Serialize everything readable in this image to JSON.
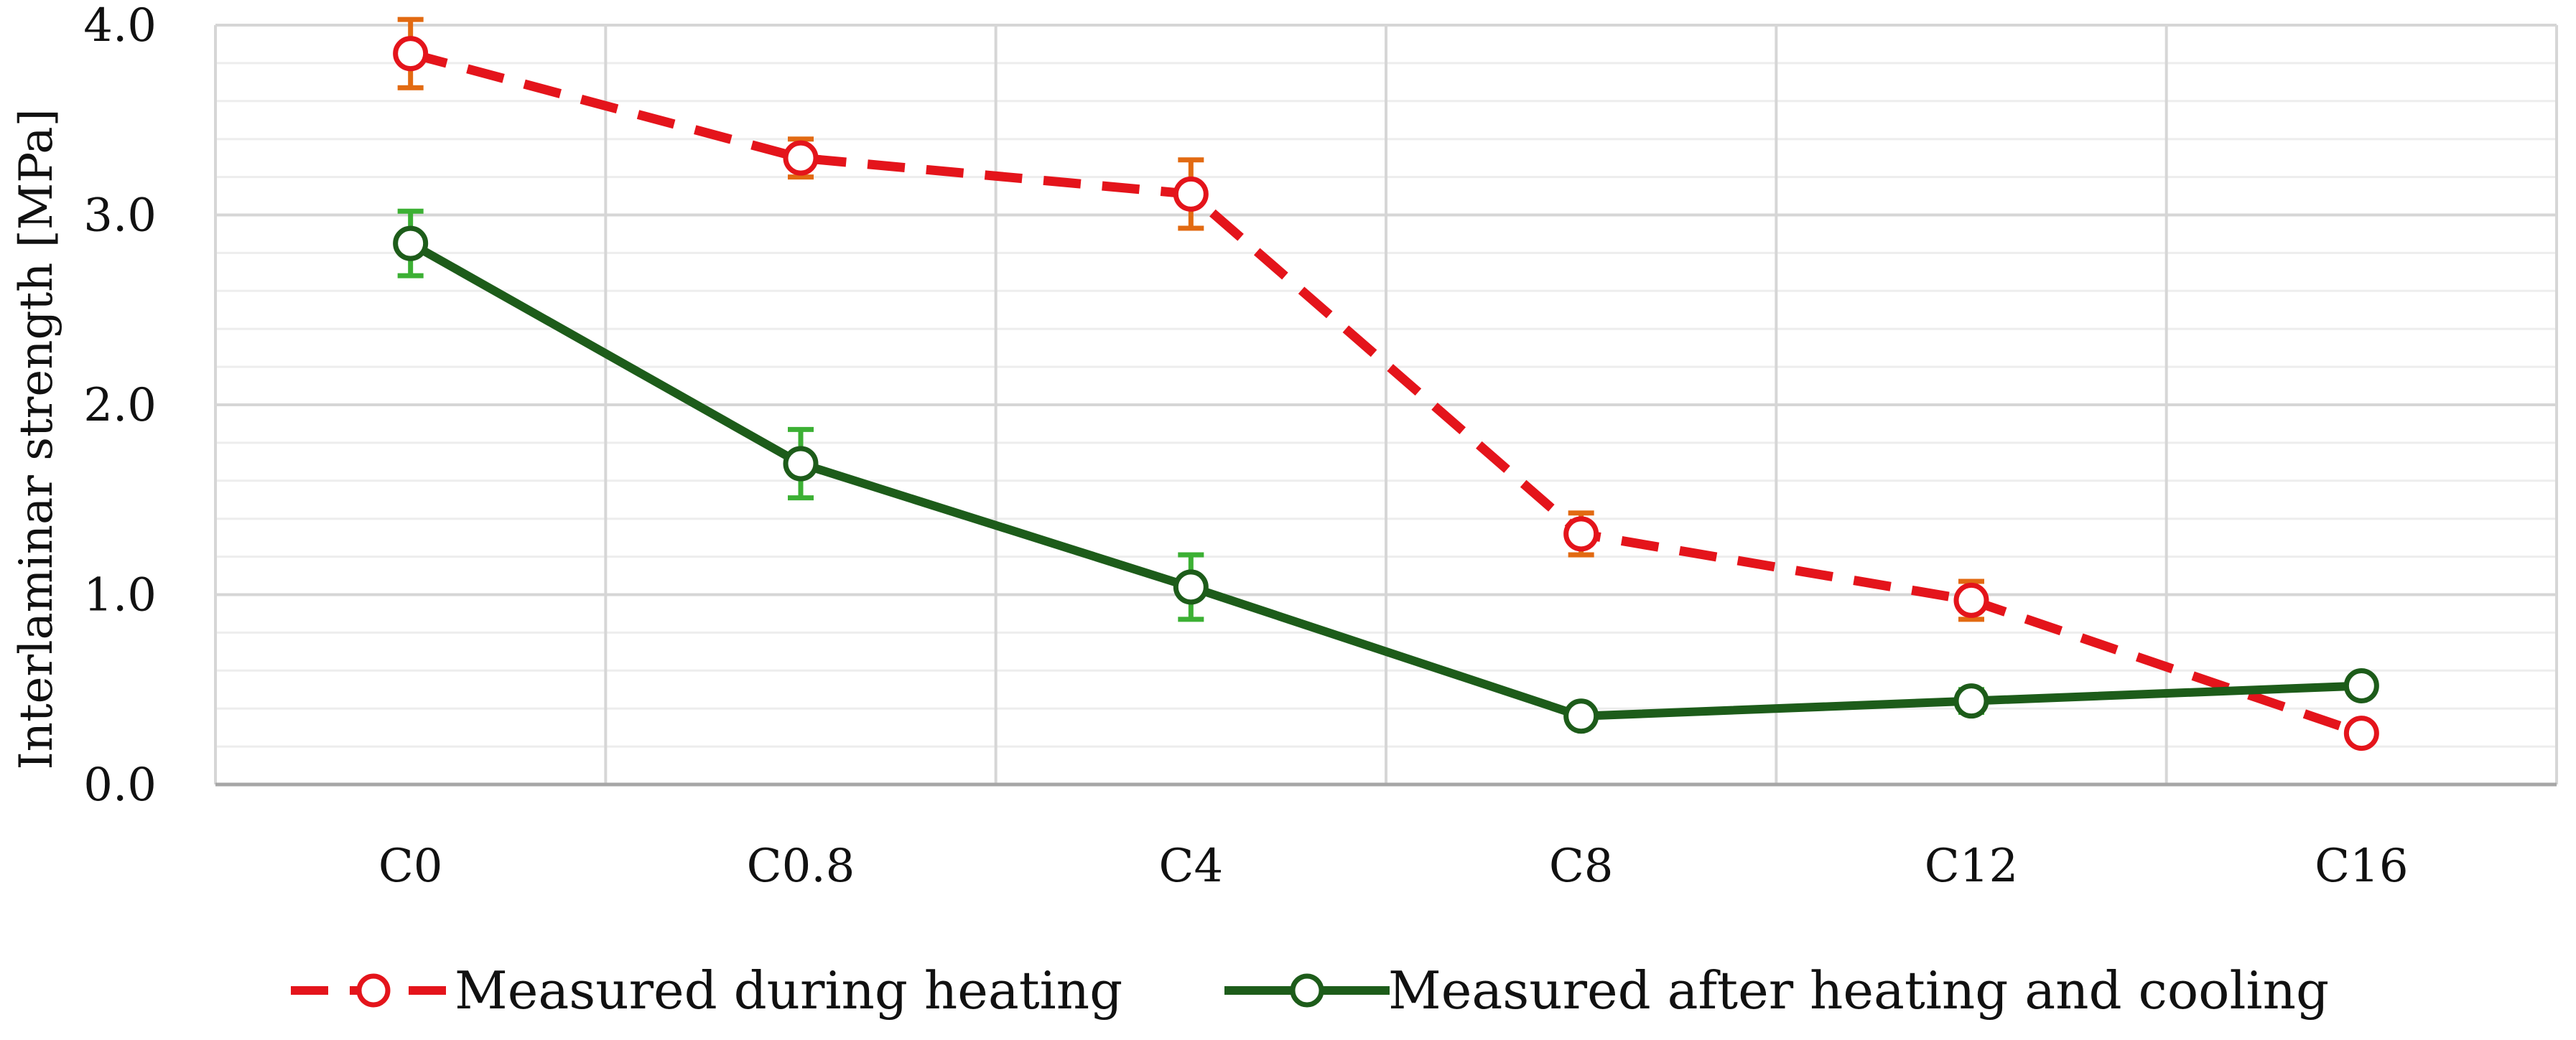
{
  "chart_data": {
    "type": "line",
    "title": "",
    "xlabel": "",
    "ylabel": "Interlaminar strength [MPa]",
    "categories": [
      "C0",
      "C0.8",
      "C4",
      "C8",
      "C12",
      "C16"
    ],
    "ylim": [
      0,
      4
    ],
    "yticks": [
      {
        "value": 0,
        "label": "0.0"
      },
      {
        "value": 1,
        "label": "1.0"
      },
      {
        "value": 2,
        "label": "2.0"
      },
      {
        "value": 3,
        "label": "3.0"
      },
      {
        "value": 4,
        "label": "4.0"
      }
    ],
    "minor_grid_step": 0.2,
    "grid": true,
    "legend_position": "bottom",
    "series": [
      {
        "name": "Measured during heating",
        "values": [
          3.85,
          3.3,
          3.11,
          1.32,
          0.97,
          0.27
        ],
        "errors": [
          0.18,
          0.1,
          0.18,
          0.11,
          0.1,
          0.05
        ],
        "color": "#e4141b",
        "error_color": "#e26a12",
        "style": "dashed",
        "marker": "open-circle"
      },
      {
        "name": "Measured after heating and cooling",
        "values": [
          2.85,
          1.69,
          1.04,
          0.36,
          0.44,
          0.52
        ],
        "errors": [
          0.17,
          0.18,
          0.17,
          0.04,
          0.06,
          0.04
        ],
        "color": "#1d5c1a",
        "error_color": "#3cb034",
        "style": "solid",
        "marker": "open-circle"
      }
    ]
  }
}
